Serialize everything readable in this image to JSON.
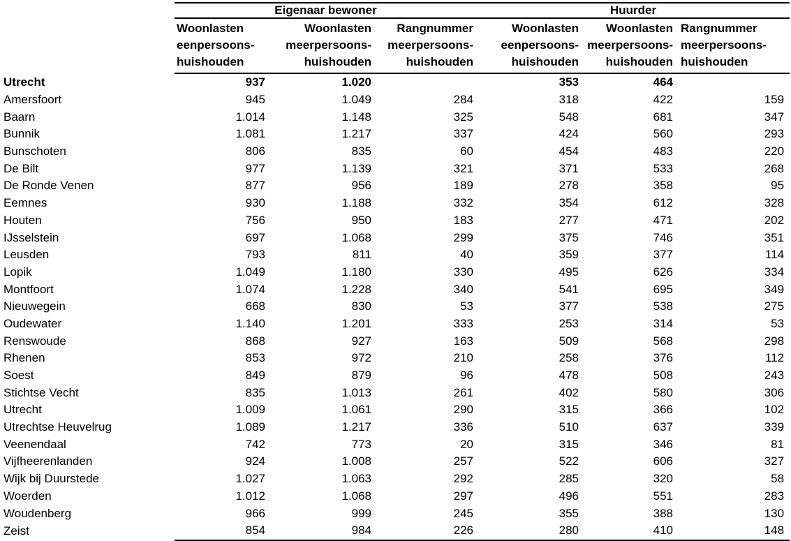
{
  "colors": {
    "text": "#000000",
    "background": "#ffffff",
    "rule": "#000000"
  },
  "table": {
    "region_row_label": "Utrecht",
    "groups": [
      {
        "label": "Eigenaar bewoner"
      },
      {
        "label": "Huurder"
      }
    ],
    "columns": [
      {
        "label": "Woonlasten\neenpersoons-\nhuishouden"
      },
      {
        "label": "Woonlasten\nmeerpersoons-\nhuishouden"
      },
      {
        "label": "Rangnummer\nmeerpersoons-\nhuishouden"
      },
      {
        "label": "Woonlasten\neenpersoons-\nhuishouden"
      },
      {
        "label": "Woonlasten\nmeerpersoons-\nhuishouden"
      },
      {
        "label": "Rangnummer\nmeerpersoons-\nhuishouden"
      }
    ],
    "rows": [
      {
        "label": "Utrecht",
        "bold": true,
        "values": [
          "937",
          "1.020",
          "",
          "353",
          "464",
          ""
        ]
      },
      {
        "label": "Amersfoort",
        "values": [
          "945",
          "1.049",
          "284",
          "318",
          "422",
          "159"
        ]
      },
      {
        "label": "Baarn",
        "values": [
          "1.014",
          "1.148",
          "325",
          "548",
          "681",
          "347"
        ]
      },
      {
        "label": "Bunnik",
        "values": [
          "1.081",
          "1.217",
          "337",
          "424",
          "560",
          "293"
        ]
      },
      {
        "label": "Bunschoten",
        "values": [
          "806",
          "835",
          "60",
          "454",
          "483",
          "220"
        ]
      },
      {
        "label": "De Bilt",
        "values": [
          "977",
          "1.139",
          "321",
          "371",
          "533",
          "268"
        ]
      },
      {
        "label": "De Ronde Venen",
        "values": [
          "877",
          "956",
          "189",
          "278",
          "358",
          "95"
        ]
      },
      {
        "label": "Eemnes",
        "values": [
          "930",
          "1.188",
          "332",
          "354",
          "612",
          "328"
        ]
      },
      {
        "label": "Houten",
        "values": [
          "756",
          "950",
          "183",
          "277",
          "471",
          "202"
        ]
      },
      {
        "label": "IJsselstein",
        "values": [
          "697",
          "1.068",
          "299",
          "375",
          "746",
          "351"
        ]
      },
      {
        "label": "Leusden",
        "values": [
          "793",
          "811",
          "40",
          "359",
          "377",
          "114"
        ]
      },
      {
        "label": "Lopik",
        "values": [
          "1.049",
          "1.180",
          "330",
          "495",
          "626",
          "334"
        ]
      },
      {
        "label": "Montfoort",
        "values": [
          "1.074",
          "1.228",
          "340",
          "541",
          "695",
          "349"
        ]
      },
      {
        "label": "Nieuwegein",
        "values": [
          "668",
          "830",
          "53",
          "377",
          "538",
          "275"
        ]
      },
      {
        "label": "Oudewater",
        "values": [
          "1.140",
          "1.201",
          "333",
          "253",
          "314",
          "53"
        ]
      },
      {
        "label": "Renswoude",
        "values": [
          "868",
          "927",
          "163",
          "509",
          "568",
          "298"
        ]
      },
      {
        "label": "Rhenen",
        "values": [
          "853",
          "972",
          "210",
          "258",
          "376",
          "112"
        ]
      },
      {
        "label": "Soest",
        "values": [
          "849",
          "879",
          "96",
          "478",
          "508",
          "243"
        ]
      },
      {
        "label": "Stichtse Vecht",
        "values": [
          "835",
          "1.013",
          "261",
          "402",
          "580",
          "306"
        ]
      },
      {
        "label": "Utrecht",
        "values": [
          "1.009",
          "1.061",
          "290",
          "315",
          "366",
          "102"
        ]
      },
      {
        "label": "Utrechtse Heuvelrug",
        "values": [
          "1.089",
          "1.217",
          "336",
          "510",
          "637",
          "339"
        ]
      },
      {
        "label": "Veenendaal",
        "values": [
          "742",
          "773",
          "20",
          "315",
          "346",
          "81"
        ]
      },
      {
        "label": "Vijfheerenlanden",
        "values": [
          "924",
          "1.008",
          "257",
          "522",
          "606",
          "327"
        ]
      },
      {
        "label": "Wijk bij Duurstede",
        "values": [
          "1.027",
          "1.063",
          "292",
          "285",
          "320",
          "58"
        ]
      },
      {
        "label": "Woerden",
        "values": [
          "1.012",
          "1.068",
          "297",
          "496",
          "551",
          "283"
        ]
      },
      {
        "label": "Woudenberg",
        "values": [
          "966",
          "999",
          "245",
          "355",
          "388",
          "130"
        ]
      },
      {
        "label": "Zeist",
        "values": [
          "854",
          "984",
          "226",
          "280",
          "410",
          "148"
        ]
      }
    ]
  }
}
